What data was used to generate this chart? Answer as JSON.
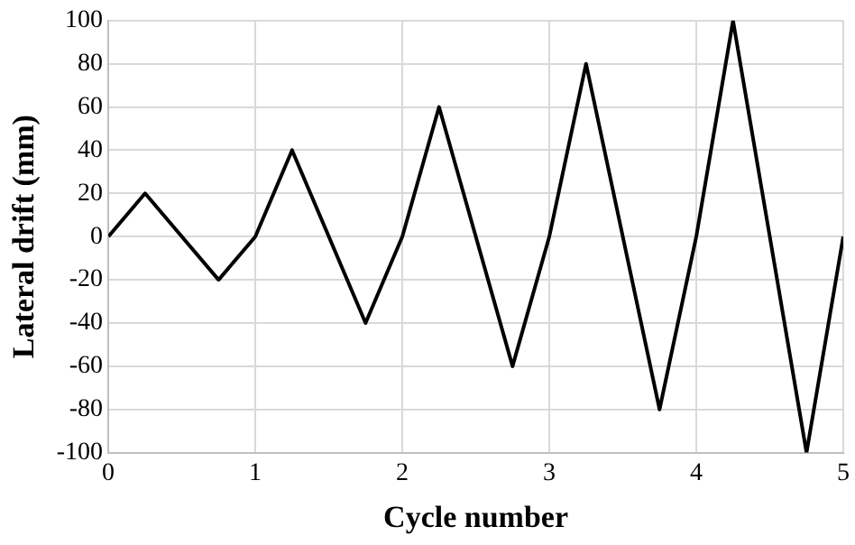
{
  "chart_data": {
    "type": "line",
    "xlabel": "Cycle number",
    "ylabel": "Lateral drift (mm)",
    "x": [
      0,
      0.25,
      0.75,
      1,
      1.25,
      1.75,
      2,
      2.25,
      2.75,
      3,
      3.25,
      3.75,
      4,
      4.25,
      4.75,
      5
    ],
    "series": [
      {
        "color": "#000000",
        "values": [
          0,
          20,
          -20,
          0,
          40,
          -40,
          0,
          60,
          -60,
          0,
          80,
          -80,
          0,
          100,
          -100,
          0
        ]
      }
    ],
    "xlim": [
      0,
      5
    ],
    "xticks": [
      0,
      1,
      2,
      3,
      4,
      5
    ],
    "ylim": [
      -100,
      100
    ],
    "yticks": [
      -100,
      -80,
      -60,
      -40,
      -20,
      0,
      20,
      40,
      60,
      80,
      100
    ],
    "grid": true,
    "legend": false,
    "marker": "none",
    "line_style": "solid"
  }
}
